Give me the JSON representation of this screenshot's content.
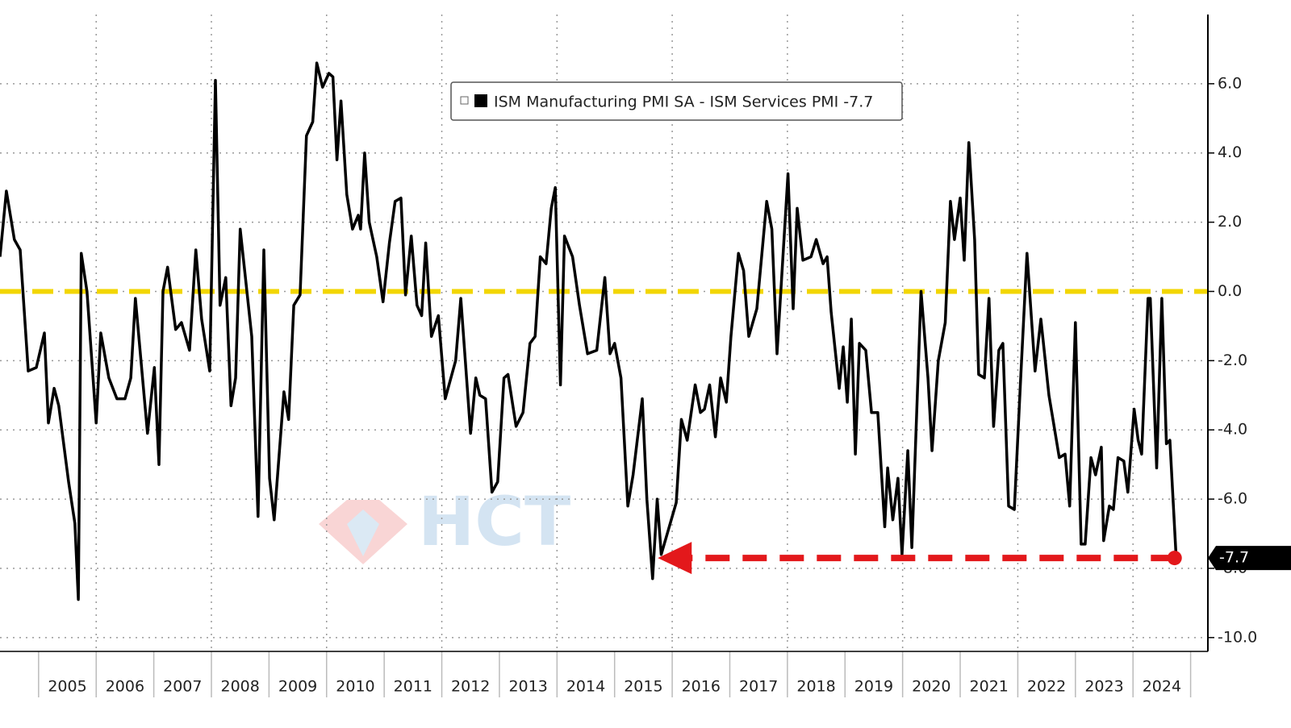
{
  "chart_data": {
    "type": "line",
    "series": [
      {
        "name": "ISM Manufacturing PMI SA - ISM Services PMI -7.7",
        "color": "#000000",
        "x": [
          2004.33,
          2004.44,
          2004.58,
          2004.68,
          2004.82,
          2004.96,
          2005.1,
          2005.17,
          2005.27,
          2005.35,
          2005.52,
          2005.63,
          2005.69,
          2005.74,
          2005.84,
          2006.0,
          2006.08,
          2006.22,
          2006.36,
          2006.5,
          2006.6,
          2006.68,
          2006.89,
          2007.01,
          2007.09,
          2007.16,
          2007.24,
          2007.38,
          2007.48,
          2007.62,
          2007.73,
          2007.83,
          2007.97,
          2008.07,
          2008.15,
          2008.25,
          2008.34,
          2008.42,
          2008.5,
          2008.7,
          2008.81,
          2008.91,
          2009.01,
          2009.09,
          2009.26,
          2009.34,
          2009.43,
          2009.54,
          2009.65,
          2009.76,
          2009.83,
          2009.93,
          2010.04,
          2010.11,
          2010.18,
          2010.25,
          2010.35,
          2010.45,
          2010.55,
          2010.59,
          2010.66,
          2010.74,
          2010.87,
          2010.98,
          2011.09,
          2011.19,
          2011.29,
          2011.37,
          2011.47,
          2011.57,
          2011.65,
          2011.72,
          2011.82,
          2011.94,
          2012.06,
          2012.24,
          2012.33,
          2012.5,
          2012.59,
          2012.66,
          2012.76,
          2012.87,
          2012.97,
          2013.08,
          2013.15,
          2013.29,
          2013.41,
          2013.53,
          2013.62,
          2013.71,
          2013.81,
          2013.9,
          2013.97,
          2014.06,
          2014.13,
          2014.27,
          2014.39,
          2014.53,
          2014.69,
          2014.83,
          2014.92,
          2015.0,
          2015.11,
          2015.23,
          2015.32,
          2015.48,
          2015.56,
          2015.66,
          2015.74,
          2015.81,
          2016.07,
          2016.16,
          2016.26,
          2016.4,
          2016.49,
          2016.56,
          2016.65,
          2016.75,
          2016.84,
          2016.94,
          2017.02,
          2017.15,
          2017.24,
          2017.33,
          2017.47,
          2017.64,
          2017.73,
          2017.82,
          2018.01,
          2018.1,
          2018.17,
          2018.27,
          2018.41,
          2018.5,
          2018.62,
          2018.69,
          2018.76,
          2018.9,
          2018.97,
          2019.04,
          2019.11,
          2019.18,
          2019.25,
          2019.36,
          2019.46,
          2019.57,
          2019.69,
          2019.74,
          2019.83,
          2019.92,
          2019.99,
          2020.09,
          2020.16,
          2020.32,
          2020.44,
          2020.51,
          2020.62,
          2020.74,
          2020.83,
          2020.9,
          2021.0,
          2021.07,
          2021.15,
          2021.25,
          2021.32,
          2021.42,
          2021.5,
          2021.58,
          2021.67,
          2021.74,
          2021.84,
          2021.94,
          2022.05,
          2022.16,
          2022.3,
          2022.4,
          2022.54,
          2022.61,
          2022.72,
          2022.82,
          2022.9,
          2023.0,
          2023.1,
          2023.17,
          2023.27,
          2023.35,
          2023.45,
          2023.49,
          2023.59,
          2023.66,
          2023.74,
          2023.84,
          2023.91,
          2024.02,
          2024.09,
          2024.15,
          2024.26,
          2024.3,
          2024.41,
          2024.5,
          2024.58,
          2024.64,
          2024.75
        ],
        "values": [
          1.0,
          2.9,
          1.5,
          1.2,
          -2.3,
          -2.2,
          -1.2,
          -3.8,
          -2.8,
          -3.3,
          -5.5,
          -6.7,
          -8.9,
          1.1,
          0,
          -3.8,
          -1.2,
          -2.5,
          -3.1,
          -3.1,
          -2.5,
          -0.2,
          -4.1,
          -2.2,
          -5.0,
          0,
          0.7,
          -1.1,
          -0.9,
          -1.7,
          1.2,
          -0.8,
          -2.3,
          6.1,
          -0.4,
          0.4,
          -3.3,
          -2.5,
          1.8,
          -1.3,
          -6.5,
          1.2,
          -5.4,
          -6.6,
          -2.9,
          -3.7,
          -0.4,
          -0.1,
          4.5,
          4.9,
          6.6,
          5.9,
          6.3,
          6.2,
          3.8,
          5.5,
          2.8,
          1.8,
          2.2,
          1.8,
          4.0,
          2.0,
          1.0,
          -0.3,
          1.4,
          2.6,
          2.7,
          -0.1,
          1.6,
          -0.4,
          -0.7,
          1.4,
          -1.3,
          -0.7,
          -3.1,
          -2.0,
          -0.2,
          -4.1,
          -2.5,
          -3.0,
          -3.1,
          -5.8,
          -5.5,
          -2.5,
          -2.4,
          -3.9,
          -3.5,
          -1.5,
          -1.3,
          1.0,
          0.8,
          2.4,
          3.0,
          -2.7,
          1.6,
          1.0,
          -0.4,
          -1.8,
          -1.7,
          0.4,
          -1.8,
          -1.5,
          -2.5,
          -6.2,
          -5.3,
          -3.1,
          -6.0,
          -8.3,
          -6.0,
          -7.6,
          -6.1,
          -3.7,
          -4.3,
          -2.7,
          -3.5,
          -3.4,
          -2.7,
          -4.2,
          -2.5,
          -3.2,
          -1.3,
          1.1,
          0.6,
          -1.3,
          -0.5,
          2.6,
          1.8,
          -1.8,
          3.4,
          -0.5,
          2.4,
          0.9,
          1.0,
          1.5,
          0.8,
          1.0,
          -0.6,
          -2.8,
          -1.6,
          -3.2,
          -0.8,
          -4.7,
          -1.5,
          -1.7,
          -3.5,
          -3.5,
          -6.8,
          -5.1,
          -6.6,
          -5.4,
          -7.6,
          -4.6,
          -7.4,
          0,
          -2.5,
          -4.6,
          -2.0,
          -0.9,
          2.6,
          1.5,
          2.7,
          0.9,
          4.3,
          1.5,
          -2.4,
          -2.5,
          -0.2,
          -3.9,
          -1.7,
          -1.5,
          -6.2,
          -6.3,
          -2.5,
          1.1,
          -2.3,
          -0.8,
          -3.0,
          -3.7,
          -4.8,
          -4.7,
          -6.2,
          -0.9,
          -7.3,
          -7.3,
          -4.8,
          -5.3,
          -4.5,
          -7.2,
          -6.2,
          -6.3,
          -4.8,
          -4.9,
          -5.8,
          -3.4,
          -4.3,
          -4.7,
          -0.2,
          -0.2,
          -5.1,
          -0.2,
          -4.4,
          -4.3,
          -7.7
        ]
      }
    ],
    "xlim": [
      2004.33,
      2025.3
    ],
    "ylim": [
      -10.4,
      8.0
    ],
    "xticks": [
      {
        "value": 2005.5,
        "label": "2005"
      },
      {
        "value": 2006.5,
        "label": "2006"
      },
      {
        "value": 2007.5,
        "label": "2007"
      },
      {
        "value": 2008.5,
        "label": "2008"
      },
      {
        "value": 2009.5,
        "label": "2009"
      },
      {
        "value": 2010.5,
        "label": "2010"
      },
      {
        "value": 2011.5,
        "label": "2011"
      },
      {
        "value": 2012.5,
        "label": "2012"
      },
      {
        "value": 2013.5,
        "label": "2013"
      },
      {
        "value": 2014.5,
        "label": "2014"
      },
      {
        "value": 2015.5,
        "label": "2015"
      },
      {
        "value": 2016.5,
        "label": "2016"
      },
      {
        "value": 2017.5,
        "label": "2017"
      },
      {
        "value": 2018.5,
        "label": "2018"
      },
      {
        "value": 2019.5,
        "label": "2019"
      },
      {
        "value": 2020.5,
        "label": "2020"
      },
      {
        "value": 2021.5,
        "label": "2021"
      },
      {
        "value": 2022.5,
        "label": "2022"
      },
      {
        "value": 2023.5,
        "label": "2023"
      },
      {
        "value": 2024.5,
        "label": "2024"
      }
    ],
    "yticks": [
      {
        "value": -10,
        "label": "-10.0"
      },
      {
        "value": -8,
        "label": "-8.0"
      },
      {
        "value": -6,
        "label": "-6.0"
      },
      {
        "value": -4,
        "label": "-4.0"
      },
      {
        "value": -2,
        "label": "-2.0"
      },
      {
        "value": 0,
        "label": "0.0"
      },
      {
        "value": 2,
        "label": "2.0"
      },
      {
        "value": 4,
        "label": "4.0"
      },
      {
        "value": 6,
        "label": "6.0"
      }
    ],
    "grid": true,
    "last_value": -7.7,
    "reference_line": {
      "value": 0,
      "color": "#f2d600"
    },
    "arrow": {
      "y": -7.7,
      "x": [
        2024.73,
        2015.75
      ],
      "color": "#e3181b"
    },
    "watermark": "HCT"
  }
}
